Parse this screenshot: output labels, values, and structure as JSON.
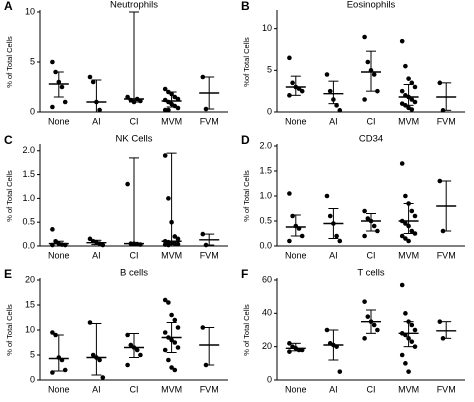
{
  "chart_data": [
    {
      "type": "dot",
      "label": "A",
      "title": "Neutrophils",
      "y_label": "% of Total Cells",
      "categories": [
        "None",
        "AI",
        "CI",
        "MVM",
        "FVM"
      ],
      "points": [
        [
          5,
          4,
          3,
          2.5,
          1,
          0.5
        ],
        [
          3.5,
          3,
          1,
          0.2
        ],
        [
          1.5,
          1.2,
          1.0,
          1.3,
          1.1
        ],
        [
          2.3,
          2,
          1.8,
          1.5,
          1.3,
          1.2,
          1,
          0.8,
          0.6,
          0.4,
          0.2,
          0.2
        ],
        [
          3.5,
          0.3
        ]
      ],
      "center": [
        2.8,
        1,
        1.3,
        1.1,
        1.9
      ],
      "lower": [
        1.5,
        0,
        1.0,
        0.5,
        0.3
      ],
      "upper": [
        4,
        3.2,
        10,
        2,
        3.5
      ],
      "ylim": [
        0,
        10
      ],
      "yticks": [
        0,
        5,
        10
      ]
    },
    {
      "type": "dot",
      "label": "B",
      "title": "Eosinophils",
      "y_label": "%of Total Cells",
      "categories": [
        "None",
        "AI",
        "CI",
        "MVM",
        "FVM"
      ],
      "points": [
        [
          6.5,
          3.5,
          3,
          2.8,
          2.5,
          2
        ],
        [
          4.5,
          2.5,
          1.5,
          0.8,
          0.2
        ],
        [
          9,
          6,
          5,
          4.5,
          2.5,
          1.5
        ],
        [
          8.5,
          5.5,
          4,
          3.5,
          3,
          2.5,
          2,
          1.8,
          1.5,
          1.2,
          1,
          0.8,
          0.5,
          0.3
        ],
        [
          3.5,
          0.2
        ]
      ],
      "center": [
        3,
        2.2,
        4.8,
        1.8,
        1.8
      ],
      "lower": [
        2,
        1,
        2.5,
        0.8,
        0.2
      ],
      "upper": [
        4.3,
        3.7,
        7.3,
        3.3,
        3.5
      ],
      "ylim": [
        0,
        12
      ],
      "yticks": [
        0,
        5,
        10
      ]
    },
    {
      "type": "dot",
      "label": "C",
      "title": "NK Cells",
      "y_label": "% of Total Cells",
      "categories": [
        "None",
        "AI",
        "CI",
        "MVM",
        "FVM"
      ],
      "points": [
        [
          0.35,
          0.1,
          0.05,
          0.03,
          0.02,
          0.02
        ],
        [
          0.15,
          0.1,
          0.08,
          0.05,
          0.02
        ],
        [
          1.3,
          0.05,
          0.05,
          0.04,
          0.03
        ],
        [
          1.9,
          1.0,
          0.5,
          0.2,
          0.15,
          0.1,
          0.08,
          0.06,
          0.05,
          0.04,
          0.03,
          0.02
        ],
        [
          0.25,
          0.02
        ]
      ],
      "center": [
        0.05,
        0.07,
        0.05,
        0.1,
        0.13
      ],
      "lower": [
        0,
        0.03,
        0.03,
        0.05,
        0.02
      ],
      "upper": [
        0.1,
        0.12,
        1.85,
        1.95,
        0.25
      ],
      "ylim": [
        0,
        2.1
      ],
      "yticks": [
        {
          "value": 0,
          "label": "0.0"
        },
        {
          "value": 0.5,
          "label": "0.5"
        },
        {
          "value": 1,
          "label": "1.0"
        },
        {
          "value": 1.5,
          "label": "1.5"
        },
        {
          "value": 2,
          "label": "2.0"
        }
      ]
    },
    {
      "type": "dot",
      "label": "D",
      "title": "CD34",
      "y_label": "% of Total Cells",
      "categories": [
        "None",
        "AI",
        "CI",
        "MVM",
        "FVM"
      ],
      "points": [
        [
          1.05,
          0.6,
          0.4,
          0.35,
          0.2,
          0.1
        ],
        [
          1.0,
          0.6,
          0.45,
          0.2,
          0.1
        ],
        [
          0.7,
          0.55,
          0.5,
          0.4,
          0.3,
          0.2
        ],
        [
          1.65,
          1.0,
          0.85,
          0.7,
          0.6,
          0.5,
          0.45,
          0.4,
          0.3,
          0.25,
          0.2,
          0.15,
          0.1
        ],
        [
          1.3,
          0.3
        ]
      ],
      "center": [
        0.38,
        0.45,
        0.5,
        0.5,
        0.8
      ],
      "lower": [
        0.2,
        0.15,
        0.3,
        0.25,
        0.3
      ],
      "upper": [
        0.62,
        0.75,
        0.65,
        0.85,
        1.3
      ],
      "ylim": [
        0,
        2
      ],
      "yticks": [
        {
          "value": 0,
          "label": "0.0"
        },
        {
          "value": 0.5,
          "label": "0.5"
        },
        {
          "value": 1,
          "label": "1.0"
        },
        {
          "value": 1.5,
          "label": "1.5"
        },
        {
          "value": 2,
          "label": "2.0"
        }
      ]
    },
    {
      "type": "dot",
      "label": "E",
      "title": "B cells",
      "y_label": "% of Total Cells",
      "categories": [
        "None",
        "AI",
        "CI",
        "MVM",
        "FVM"
      ],
      "points": [
        [
          9.5,
          9,
          4.5,
          4,
          2,
          1.5
        ],
        [
          11.5,
          5,
          4.5,
          4,
          0.5
        ],
        [
          9,
          7,
          6.5,
          6,
          5,
          3
        ],
        [
          16,
          15.5,
          13,
          12,
          10.5,
          9.5,
          8.5,
          8,
          7.5,
          6.5,
          6,
          4,
          2.5,
          2
        ],
        [
          10.5,
          3
        ]
      ],
      "center": [
        4.3,
        4.5,
        6.5,
        8.5,
        7
      ],
      "lower": [
        1.8,
        1,
        4.5,
        5.5,
        3
      ],
      "upper": [
        9,
        11.3,
        9.3,
        11.5,
        10.5
      ],
      "ylim": [
        0,
        20
      ],
      "yticks": [
        0,
        5,
        10,
        15,
        20
      ]
    },
    {
      "type": "dot",
      "label": "F",
      "title": "T cells",
      "y_label": "% of Total Cells",
      "categories": [
        "None",
        "AI",
        "CI",
        "MVM",
        "FVM"
      ],
      "points": [
        [
          22,
          20,
          19,
          18,
          18,
          17
        ],
        [
          30,
          22,
          21,
          20,
          5
        ],
        [
          47,
          38,
          35,
          33,
          30,
          25
        ],
        [
          57,
          40,
          35,
          33,
          30,
          28,
          27,
          25,
          23,
          20,
          15,
          10,
          5
        ],
        [
          35,
          25
        ]
      ],
      "center": [
        19,
        21,
        35,
        28,
        29.5
      ],
      "lower": [
        17.5,
        12,
        28,
        20,
        25
      ],
      "upper": [
        22,
        30,
        42,
        35,
        35
      ],
      "ylim": [
        0,
        60
      ],
      "yticks": [
        0,
        20,
        40,
        60
      ]
    }
  ]
}
